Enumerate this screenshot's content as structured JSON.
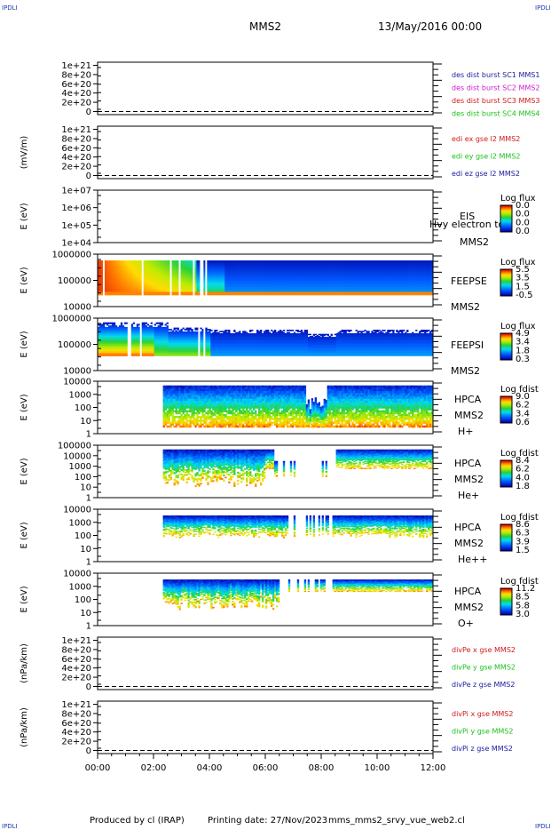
{
  "header": {
    "corner_left": "IPDLI",
    "corner_right": "IPDLI",
    "title": "MMS2",
    "datetime": "13/May/2016 00:00"
  },
  "footer": {
    "produced_by": "Produced by cl (IRAP)",
    "printing_date": "Printing date: 27/Nov/2023",
    "filename": "mms_mms2_srvy_vue_web2.cl",
    "corner_left": "IPDLI",
    "corner_right": "IPDLI"
  },
  "chart_data": {
    "type": "heatmap",
    "x_ticks": [
      "00:00",
      "02:00",
      "04:00",
      "06:00",
      "08:00",
      "10:00",
      "12:00"
    ],
    "x_range": [
      "00:00",
      "12:00"
    ],
    "panels": [
      {
        "id": "des-dist",
        "kind": "line",
        "ylabel": "",
        "yticks": [
          "1e+21",
          "8e+20",
          "6e+20",
          "4e+20",
          "2e+20",
          "0"
        ],
        "legend": [
          {
            "text": "des dist burst SC1 MMS1",
            "color": "#1a1aa0"
          },
          {
            "text": "des dist burst SC2 MMS2",
            "color": "#d01ad0"
          },
          {
            "text": "des dist burst SC3 MMS3",
            "color": "#d01a1a"
          },
          {
            "text": "des dist burst SC4 MMS4",
            "color": "#1ac01a"
          }
        ]
      },
      {
        "id": "edi-e",
        "kind": "line",
        "ylabel": "(mV/m)",
        "yticks": [
          "1e+21",
          "8e+20",
          "6e+20",
          "4e+20",
          "2e+20",
          "0"
        ],
        "legend": [
          {
            "text": "edi ex gse l2 MMS2",
            "color": "#d01a1a"
          },
          {
            "text": "edi ey gse l2 MMS2",
            "color": "#1ac01a"
          },
          {
            "text": "edi ez gse l2 MMS2",
            "color": "#1a1aa0"
          }
        ]
      },
      {
        "id": "eis",
        "kind": "spectrogram",
        "ylabel": "E (eV)",
        "yticks": [
          "1e+07",
          "1e+06",
          "1e+05",
          "1e+04"
        ],
        "labels": [
          "EIS",
          "Hvy electron to",
          "MMS2"
        ],
        "cbar_title": "Log flux",
        "cbar_ticks": [
          "0.0",
          "0.0",
          "0.0",
          "0.0"
        ]
      },
      {
        "id": "feepse",
        "kind": "spectrogram",
        "ylabel": "E (eV)",
        "yticks": [
          "1000000",
          "100000",
          "10000"
        ],
        "labels": [
          "FEEPSE",
          "MMS2"
        ],
        "cbar_title": "Log flux",
        "cbar_ticks": [
          "5.5",
          "3.5",
          "1.5",
          "-0.5"
        ]
      },
      {
        "id": "feepsi",
        "kind": "spectrogram",
        "ylabel": "E (eV)",
        "yticks": [
          "1000000",
          "100000",
          "10000"
        ],
        "labels": [
          "FEEPSI",
          "MMS2"
        ],
        "cbar_title": "Log flux",
        "cbar_ticks": [
          "4.9",
          "3.4",
          "1.8",
          "0.3"
        ]
      },
      {
        "id": "hpca-h",
        "kind": "spectrogram",
        "ylabel": "E (eV)",
        "yticks": [
          "10000",
          "1000",
          "100",
          "10",
          "1"
        ],
        "labels": [
          "HPCA",
          "MMS2",
          "H+"
        ],
        "cbar_title": "Log fdist",
        "cbar_ticks": [
          "9.0",
          "6.2",
          "3.4",
          "0.6"
        ]
      },
      {
        "id": "hpca-he",
        "kind": "spectrogram",
        "ylabel": "E (eV)",
        "yticks": [
          "100000",
          "10000",
          "1000",
          "100",
          "10",
          "1"
        ],
        "labels": [
          "HPCA",
          "MMS2",
          "He+"
        ],
        "cbar_title": "Log fdist",
        "cbar_ticks": [
          "8.4",
          "6.2",
          "4.0",
          "1.8"
        ]
      },
      {
        "id": "hpca-he2",
        "kind": "spectrogram",
        "ylabel": "E (eV)",
        "yticks": [
          "10000",
          "1000",
          "100",
          "10",
          "1"
        ],
        "labels": [
          "HPCA",
          "MMS2",
          "He++"
        ],
        "cbar_title": "Log fdist",
        "cbar_ticks": [
          "8.6",
          "6.3",
          "3.9",
          "1.5"
        ]
      },
      {
        "id": "hpca-o",
        "kind": "spectrogram",
        "ylabel": "E (eV)",
        "yticks": [
          "10000",
          "1000",
          "100",
          "10",
          "1"
        ],
        "labels": [
          "HPCA",
          "MMS2",
          "O+"
        ],
        "cbar_title": "Log fdist",
        "cbar_ticks": [
          "11.2",
          "8.5",
          "5.8",
          "3.0"
        ]
      },
      {
        "id": "divpe",
        "kind": "line",
        "ylabel": "(nPa/km)",
        "yticks": [
          "1e+21",
          "8e+20",
          "6e+20",
          "4e+20",
          "2e+20",
          "0"
        ],
        "legend": [
          {
            "text": "divPe x gse MMS2",
            "color": "#d01a1a"
          },
          {
            "text": "divPe y gse MMS2",
            "color": "#1ac01a"
          },
          {
            "text": "divPe z gse MMS2",
            "color": "#1a1aa0"
          }
        ]
      },
      {
        "id": "divpi",
        "kind": "line",
        "ylabel": "(nPa/km)",
        "yticks": [
          "1e+21",
          "8e+20",
          "6e+20",
          "4e+20",
          "2e+20",
          "0"
        ],
        "legend": [
          {
            "text": "divPi x gse MMS2",
            "color": "#d01a1a"
          },
          {
            "text": "divPi y gse MMS2",
            "color": "#1ac01a"
          },
          {
            "text": "divPi z gse MMS2",
            "color": "#1a1aa0"
          }
        ]
      }
    ]
  }
}
